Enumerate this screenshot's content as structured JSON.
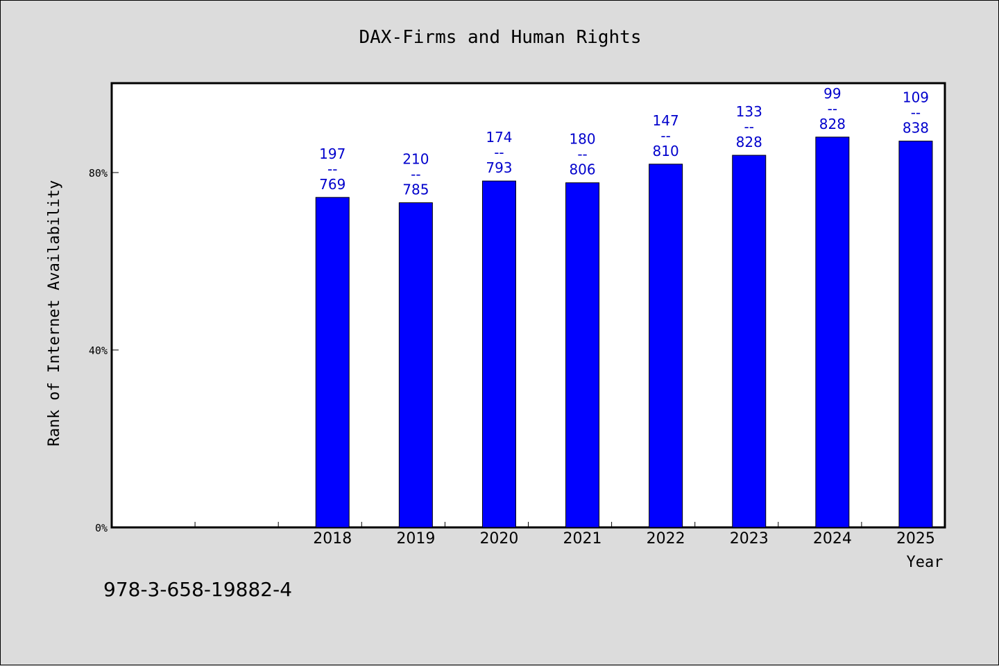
{
  "chart_data": {
    "type": "bar",
    "title": "DAX-Firms and Human Rights",
    "xlabel": "Year",
    "ylabel": "Rank of Internet Availability",
    "categories": [
      "",
      "",
      "2018",
      "2019",
      "2020",
      "2021",
      "2022",
      "2023",
      "2024",
      "2025"
    ],
    "values": [
      null,
      null,
      74.4,
      73.2,
      78.1,
      77.7,
      81.9,
      83.9,
      88.0,
      87.1
    ],
    "bar_labels": [
      null,
      null,
      [
        "197",
        "--",
        "769"
      ],
      [
        "210",
        "--",
        "785"
      ],
      [
        "174",
        "--",
        "793"
      ],
      [
        "180",
        "--",
        "806"
      ],
      [
        "147",
        "--",
        "810"
      ],
      [
        "133",
        "--",
        "828"
      ],
      [
        "99",
        "--",
        "828"
      ],
      [
        "109",
        "--",
        "838"
      ]
    ],
    "ylim": [
      0,
      100
    ],
    "yticks": [
      0,
      40,
      80
    ],
    "ytick_labels": [
      "0%",
      "40%",
      "80%"
    ],
    "grid": false,
    "bar_color": "#0000ff",
    "label_color": "#0000cc",
    "plot_background": "#ffffff",
    "page_background": "#dcdcdc"
  },
  "footer": {
    "code": "978-3-658-19882-4"
  }
}
